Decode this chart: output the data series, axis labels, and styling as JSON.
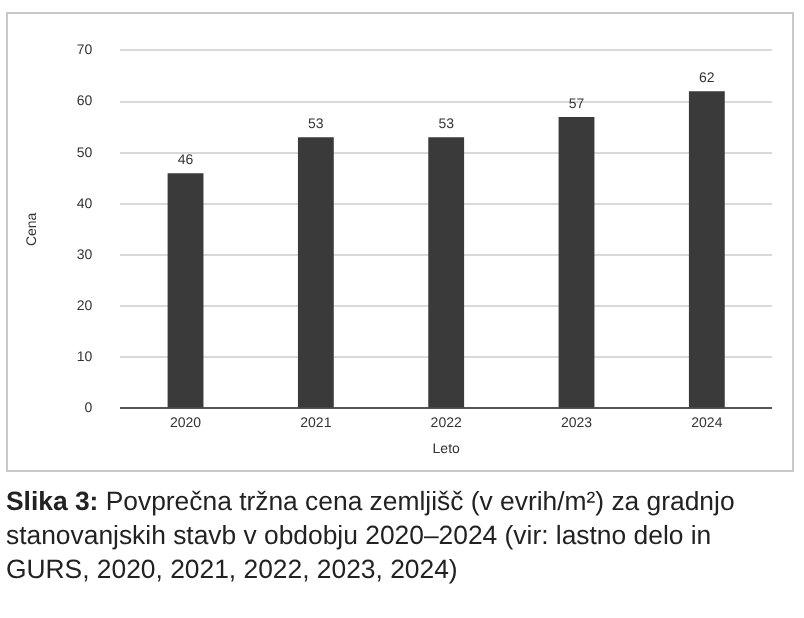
{
  "chart_data": {
    "type": "bar",
    "xlabel": "Leto",
    "ylabel": "Cena",
    "categories": [
      "2020",
      "2021",
      "2022",
      "2023",
      "2024"
    ],
    "values": [
      46,
      53,
      53,
      57,
      62
    ],
    "color": "#3a3a3a",
    "ylim": [
      0,
      70
    ],
    "yticks": [
      0,
      10,
      20,
      30,
      40,
      50,
      60,
      70
    ],
    "grid": "y",
    "data_labels": true,
    "legend": false,
    "annotations": [
      "Slika 3:",
      "Povprečna tržna cena zemljišč (v evrih/m²) za gradnjo stanovanjskih stavb v obdobju 2020–2024 (vir: lastno delo in GURS, 2020, 2021, 2022, 2023, 2024)"
    ]
  }
}
